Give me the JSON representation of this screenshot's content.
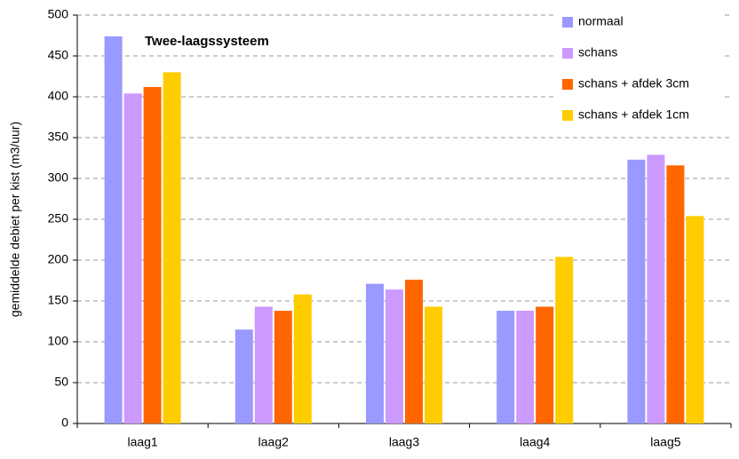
{
  "chart_data": {
    "type": "bar",
    "title": "Twee-laagssysteem",
    "y_label": "gemiddelde debiet per kist (m3/uur)",
    "categories": [
      "laag1",
      "laag2",
      "laag3",
      "laag4",
      "laag5"
    ],
    "series": [
      {
        "name": "normaal",
        "color": "#9999ff",
        "values": [
          474,
          115,
          171,
          138,
          323
        ]
      },
      {
        "name": "schans",
        "color": "#cc99ff",
        "values": [
          404,
          143,
          164,
          138,
          329
        ]
      },
      {
        "name": "schans + afdek 3cm",
        "color": "#ff6600",
        "values": [
          412,
          138,
          176,
          143,
          316
        ]
      },
      {
        "name": "schans + afdek 1cm",
        "color": "#ffcc00",
        "values": [
          430,
          158,
          143,
          204,
          254
        ]
      }
    ],
    "ylim": [
      0,
      500
    ],
    "yticks": [
      0,
      50,
      100,
      150,
      200,
      250,
      300,
      350,
      400,
      450,
      500
    ],
    "grid": true,
    "legend": "top-right"
  }
}
